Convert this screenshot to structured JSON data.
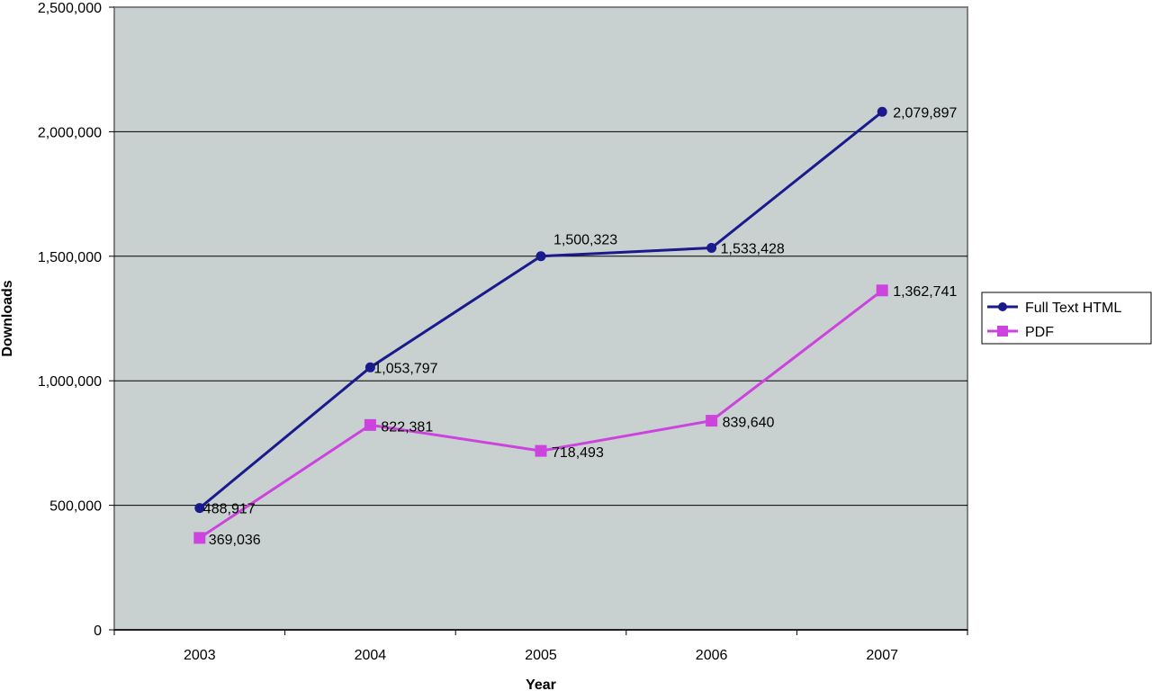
{
  "chart_data": {
    "type": "line",
    "title": "",
    "xlabel": "Year",
    "ylabel": "Downloads",
    "categories": [
      "2003",
      "2004",
      "2005",
      "2006",
      "2007"
    ],
    "ylim": [
      0,
      2500000
    ],
    "yticks": [
      0,
      500000,
      1000000,
      1500000,
      2000000,
      2500000
    ],
    "ytick_labels": [
      "0",
      "500,000",
      "1,000,000",
      "1,500,000",
      "2,000,000",
      "2,500,000"
    ],
    "grid": true,
    "legend_position": "right",
    "series": [
      {
        "name": "Full Text HTML",
        "values": [
          488917,
          1053797,
          1500323,
          1533428,
          2079897
        ],
        "labels": [
          "488,917",
          "1,053,797",
          "1,500,323",
          "1,533,428",
          "2,079,897"
        ],
        "color": "#1a1a8c",
        "marker": "circle"
      },
      {
        "name": "PDF",
        "values": [
          369036,
          822381,
          718493,
          839640,
          1362741
        ],
        "labels": [
          "369,036",
          "822,381",
          "718,493",
          "839,640",
          "1,362,741"
        ],
        "color": "#cc44dd",
        "marker": "square"
      }
    ],
    "plot_background": "#c8d0d0"
  }
}
